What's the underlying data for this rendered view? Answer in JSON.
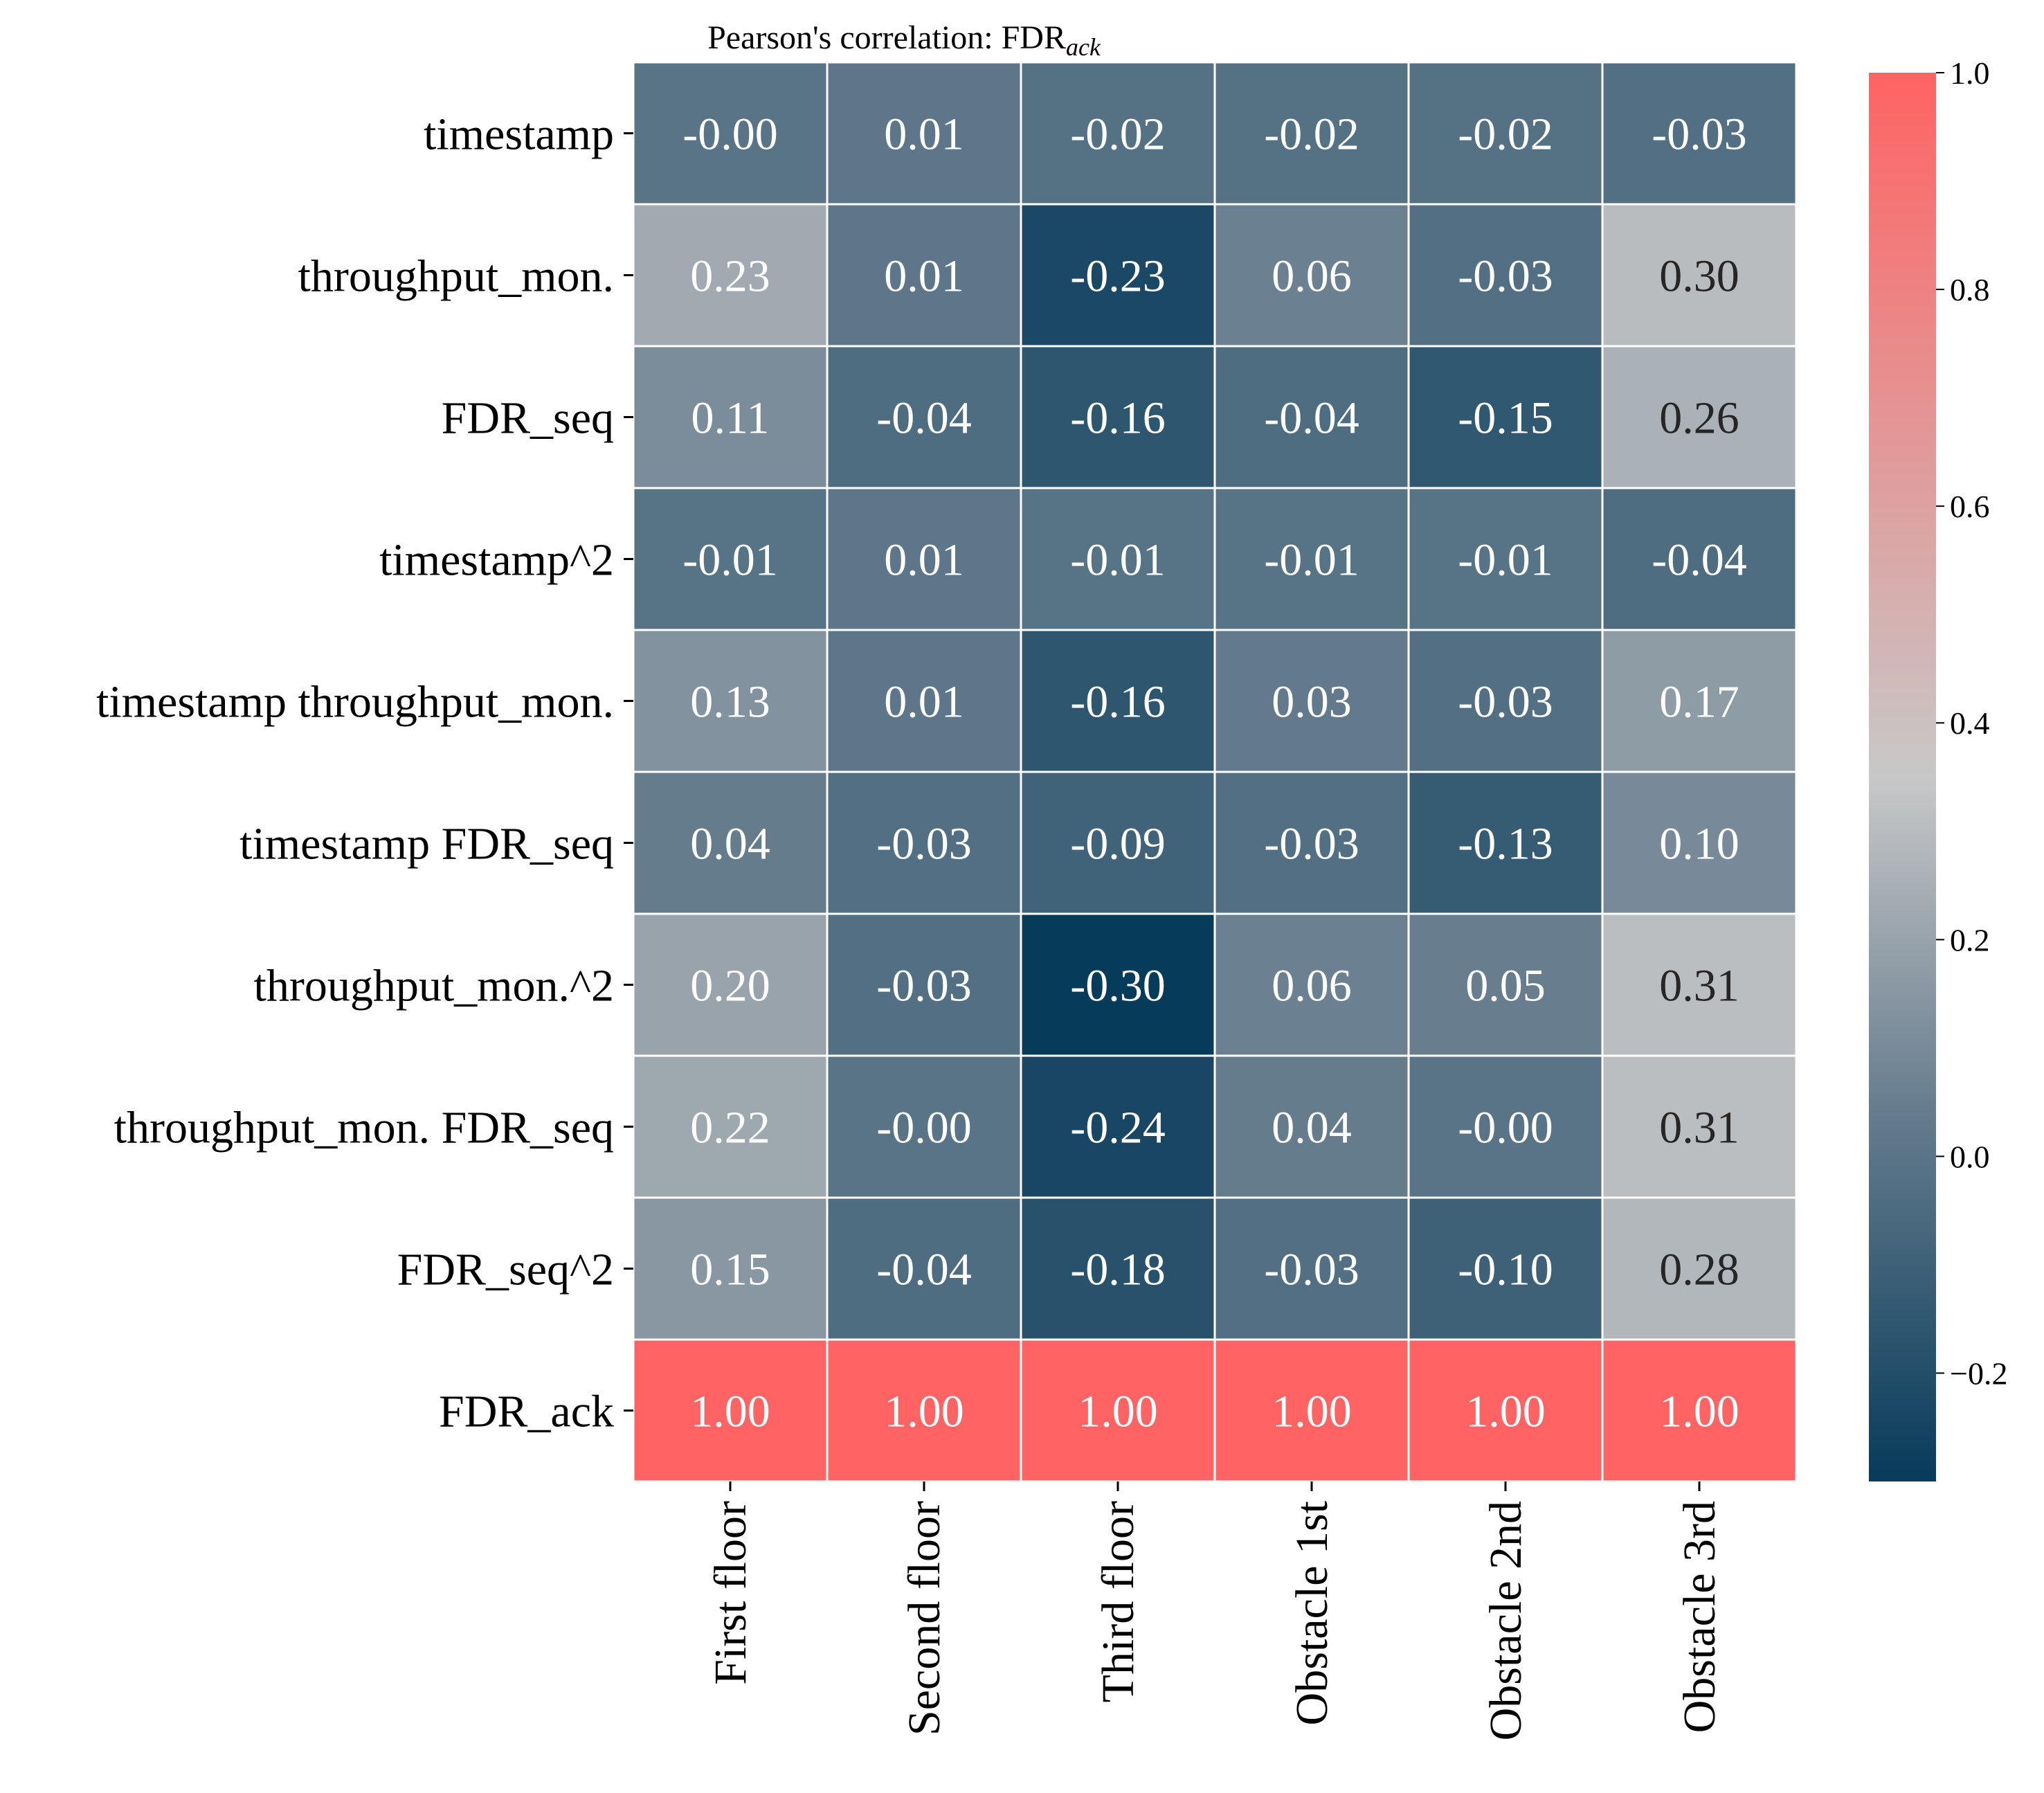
{
  "chart_data": {
    "type": "heatmap",
    "title_main": "Pearson's correlation: FDR",
    "title_sub": "ack",
    "rows": [
      "timestamp",
      "throughput_mon.",
      "FDR_seq",
      "timestamp^2",
      "timestamp throughput_mon.",
      "timestamp FDR_seq",
      "throughput_mon.^2",
      "throughput_mon. FDR_seq",
      "FDR_seq^2",
      "FDR_ack"
    ],
    "columns": [
      "First floor",
      "Second floor",
      "Third floor",
      "Obstacle 1st",
      "Obstacle 2nd",
      "Obstacle 3rd"
    ],
    "values": [
      [
        -0.0,
        0.01,
        -0.02,
        -0.02,
        -0.02,
        -0.03
      ],
      [
        0.23,
        0.01,
        -0.23,
        0.06,
        -0.03,
        0.3
      ],
      [
        0.11,
        -0.04,
        -0.16,
        -0.04,
        -0.15,
        0.26
      ],
      [
        -0.01,
        0.01,
        -0.01,
        -0.01,
        -0.01,
        -0.04
      ],
      [
        0.13,
        0.01,
        -0.16,
        0.03,
        -0.03,
        0.17
      ],
      [
        0.04,
        -0.03,
        -0.09,
        -0.03,
        -0.13,
        0.1
      ],
      [
        0.2,
        -0.03,
        -0.3,
        0.06,
        0.05,
        0.31
      ],
      [
        0.22,
        -0.0,
        -0.24,
        0.04,
        -0.0,
        0.31
      ],
      [
        0.15,
        -0.04,
        -0.18,
        -0.03,
        -0.1,
        0.28
      ],
      [
        1.0,
        1.0,
        1.0,
        1.0,
        1.0,
        1.0
      ]
    ],
    "value_labels": [
      [
        "-0.00",
        "0.01",
        "-0.02",
        "-0.02",
        "-0.02",
        "-0.03"
      ],
      [
        "0.23",
        "0.01",
        "-0.23",
        "0.06",
        "-0.03",
        "0.30"
      ],
      [
        "0.11",
        "-0.04",
        "-0.16",
        "-0.04",
        "-0.15",
        "0.26"
      ],
      [
        "-0.01",
        "0.01",
        "-0.01",
        "-0.01",
        "-0.01",
        "-0.04"
      ],
      [
        "0.13",
        "0.01",
        "-0.16",
        "0.03",
        "-0.03",
        "0.17"
      ],
      [
        "0.04",
        "-0.03",
        "-0.09",
        "-0.03",
        "-0.13",
        "0.10"
      ],
      [
        "0.20",
        "-0.03",
        "-0.30",
        "0.06",
        "0.05",
        "0.31"
      ],
      [
        "0.22",
        "-0.00",
        "-0.24",
        "0.04",
        "-0.00",
        "0.31"
      ],
      [
        "0.15",
        "-0.04",
        "-0.18",
        "-0.03",
        "-0.10",
        "0.28"
      ],
      [
        "1.00",
        "1.00",
        "1.00",
        "1.00",
        "1.00",
        "1.00"
      ]
    ],
    "colorbar": {
      "min": -0.3,
      "max": 1.0,
      "ticks": [
        -0.2,
        0.0,
        0.2,
        0.4,
        0.6,
        0.8,
        1.0
      ],
      "tick_labels": [
        "−0.2",
        "0.0",
        "0.2",
        "0.4",
        "0.6",
        "0.8",
        "1.0"
      ],
      "stops": [
        {
          "v": -0.3,
          "color": "#073b5a"
        },
        {
          "v": 0.05,
          "color": "#687e8f"
        },
        {
          "v": 0.35,
          "color": "#c8c8c8"
        },
        {
          "v": 1.0,
          "color": "#ff6363"
        }
      ]
    },
    "grid": true,
    "cell_border_color": "#ffffff",
    "text_color_light": "#ffffff",
    "text_color_dark": "#262626"
  }
}
